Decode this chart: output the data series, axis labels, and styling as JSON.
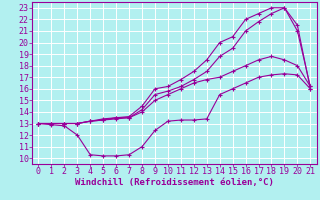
{
  "xlabel": "Windchill (Refroidissement éolien,°C)",
  "bg_color": "#b2f0f0",
  "line_color": "#990099",
  "grid_color": "#cceeee",
  "xlim": [
    -0.5,
    21.5
  ],
  "ylim": [
    9.5,
    23.5
  ],
  "xticks": [
    0,
    1,
    2,
    3,
    4,
    5,
    6,
    7,
    8,
    9,
    10,
    11,
    12,
    13,
    14,
    15,
    16,
    17,
    18,
    19,
    20,
    21
  ],
  "yticks": [
    10,
    11,
    12,
    13,
    14,
    15,
    16,
    17,
    18,
    19,
    20,
    21,
    22,
    23
  ],
  "line1_x": [
    0,
    1,
    2,
    3,
    4,
    5,
    6,
    7,
    8,
    9,
    10,
    11,
    12,
    13,
    14,
    15,
    16,
    17,
    18,
    19,
    20,
    21
  ],
  "line1_y": [
    13,
    12.9,
    12.8,
    12.0,
    10.3,
    10.2,
    10.2,
    10.3,
    11.0,
    12.4,
    13.2,
    13.3,
    13.3,
    13.4,
    15.5,
    16.0,
    16.5,
    17.0,
    17.2,
    17.3,
    17.2,
    16.0
  ],
  "line2_x": [
    0,
    1,
    2,
    3,
    4,
    5,
    6,
    7,
    8,
    9,
    10,
    11,
    12,
    13,
    14,
    15,
    16,
    17,
    18,
    19,
    20,
    21
  ],
  "line2_y": [
    13,
    13.0,
    13.0,
    13.0,
    13.2,
    13.4,
    13.5,
    13.5,
    14.0,
    15.0,
    15.5,
    16.0,
    16.5,
    16.8,
    17.0,
    17.5,
    18.0,
    18.5,
    18.8,
    18.5,
    18.0,
    16.2
  ],
  "line3_x": [
    0,
    1,
    2,
    3,
    4,
    5,
    6,
    7,
    8,
    9,
    10,
    11,
    12,
    13,
    14,
    15,
    16,
    17,
    18,
    19,
    20,
    21
  ],
  "line3_y": [
    13,
    13.0,
    13.0,
    13.0,
    13.2,
    13.3,
    13.5,
    13.6,
    14.5,
    16.0,
    16.2,
    16.8,
    17.5,
    18.5,
    20.0,
    20.5,
    22.0,
    22.5,
    23.0,
    23.0,
    21.0,
    16.2
  ],
  "line4_x": [
    0,
    1,
    2,
    3,
    4,
    5,
    6,
    7,
    8,
    9,
    10,
    11,
    12,
    13,
    14,
    15,
    16,
    17,
    18,
    19,
    20,
    21
  ],
  "line4_y": [
    13,
    13.0,
    13.0,
    13.0,
    13.2,
    13.3,
    13.4,
    13.5,
    14.2,
    15.5,
    15.8,
    16.2,
    16.8,
    17.5,
    18.8,
    19.5,
    21.0,
    21.8,
    22.5,
    23.0,
    21.5,
    16.0
  ],
  "xlabel_fontsize": 6.5,
  "tick_fontsize": 6,
  "tick_color": "#990099",
  "axis_color": "#990099",
  "lw": 0.8
}
